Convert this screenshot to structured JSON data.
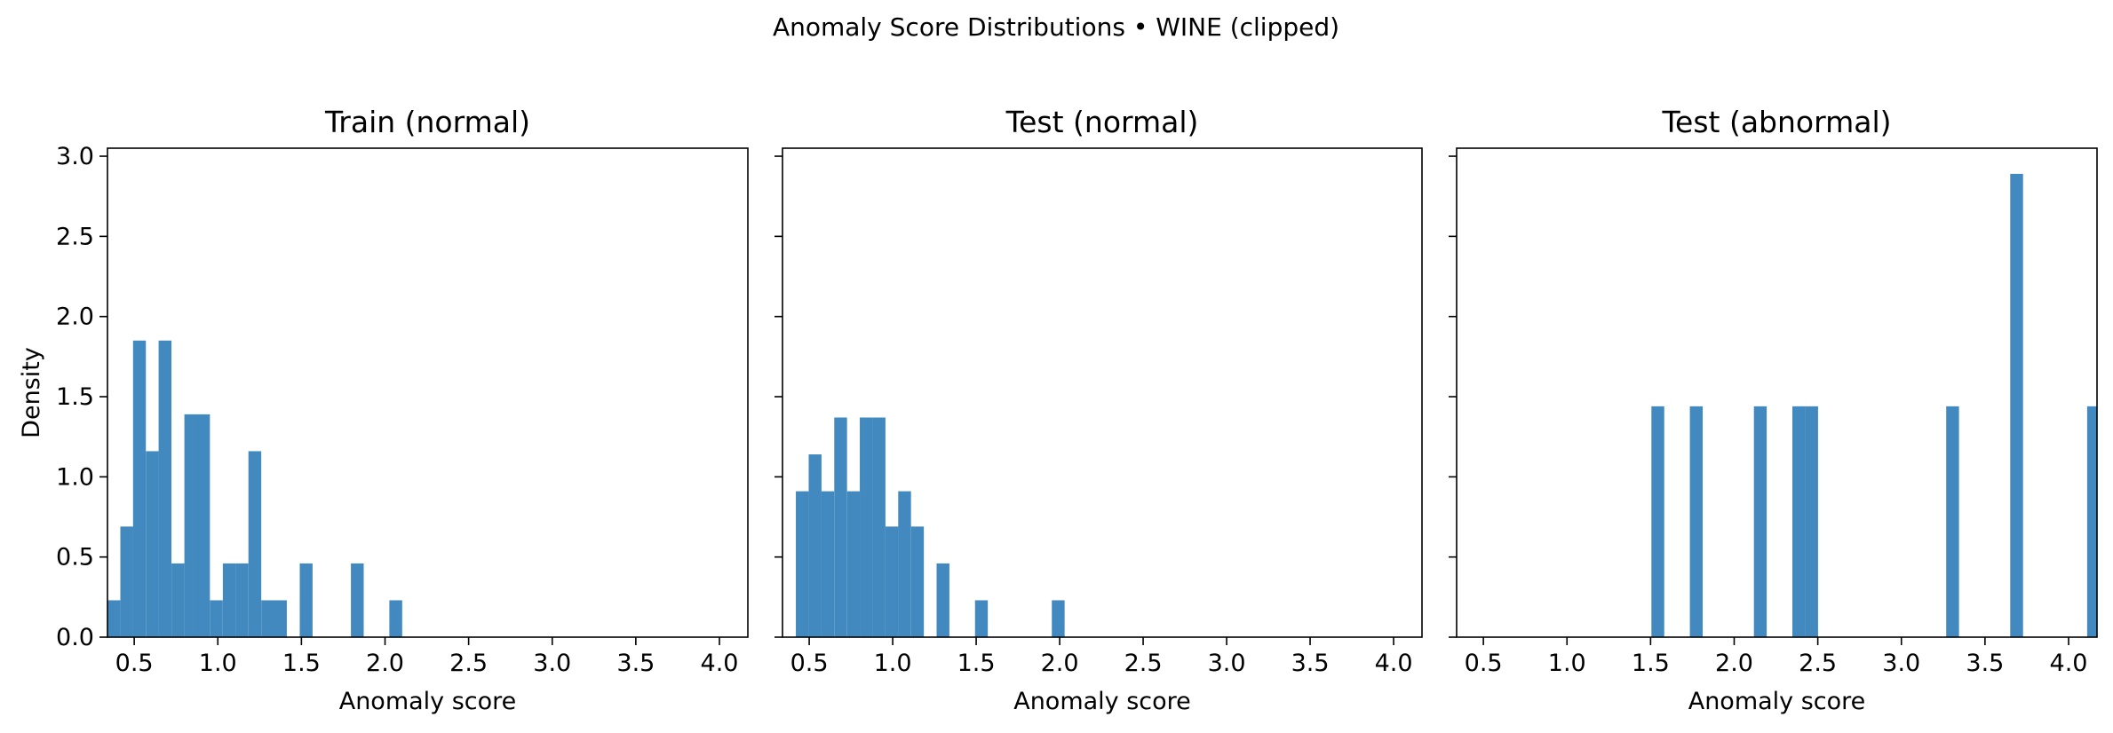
{
  "figure": {
    "title": "Anomaly Score Distributions • WINE (clipped)",
    "bar_color": "#4189be"
  },
  "chart_data": [
    {
      "type": "bar",
      "title": "Train (normal)",
      "xlabel": "Anomaly score",
      "ylabel": "Density",
      "xlim": [
        0.34,
        4.17
      ],
      "ylim": [
        0,
        3.05
      ],
      "xticks": [
        0.5,
        1.0,
        1.5,
        2.0,
        2.5,
        3.0,
        3.5,
        4.0
      ],
      "yticks": [
        0.0,
        0.5,
        1.0,
        1.5,
        2.0,
        2.5,
        3.0
      ],
      "xtick_labels": [
        "0.5",
        "1.0",
        "1.5",
        "2.0",
        "2.5",
        "3.0",
        "3.5",
        "4.0"
      ],
      "ytick_labels": [
        "0.0",
        "0.5",
        "1.0",
        "1.5",
        "2.0",
        "2.5",
        "3.0"
      ],
      "bin_width": 0.0766,
      "bin_starts": [
        0.34,
        0.417,
        0.493,
        0.57,
        0.646,
        0.723,
        0.8,
        0.876,
        0.953,
        1.03,
        1.106,
        1.183,
        1.26,
        1.336,
        1.49,
        1.796,
        2.026
      ],
      "values": [
        0.23,
        0.69,
        1.85,
        1.16,
        1.85,
        0.46,
        1.39,
        1.39,
        0.23,
        0.46,
        0.46,
        1.16,
        0.23,
        0.23,
        0.46,
        0.46,
        0.23
      ]
    },
    {
      "type": "bar",
      "title": "Test (normal)",
      "xlabel": "Anomaly score",
      "xlim": [
        0.34,
        4.17
      ],
      "ylim": [
        0,
        3.05
      ],
      "xticks": [
        0.5,
        1.0,
        1.5,
        2.0,
        2.5,
        3.0,
        3.5,
        4.0
      ],
      "yticks": [
        0.0,
        0.5,
        1.0,
        1.5,
        2.0,
        2.5,
        3.0
      ],
      "xtick_labels": [
        "0.5",
        "1.0",
        "1.5",
        "2.0",
        "2.5",
        "3.0",
        "3.5",
        "4.0"
      ],
      "ytick_labels": [
        "",
        "",
        "",
        "",
        "",
        "",
        ""
      ],
      "bin_width": 0.0766,
      "bin_starts": [
        0.42,
        0.497,
        0.573,
        0.65,
        0.727,
        0.803,
        0.88,
        0.957,
        1.033,
        1.11,
        1.263,
        1.493,
        1.953
      ],
      "values": [
        0.91,
        1.14,
        0.91,
        1.37,
        0.91,
        1.37,
        1.37,
        0.69,
        0.91,
        0.69,
        0.46,
        0.23,
        0.23
      ]
    },
    {
      "type": "bar",
      "title": "Test (abnormal)",
      "xlabel": "Anomaly score",
      "xlim": [
        0.34,
        4.17
      ],
      "ylim": [
        0,
        3.05
      ],
      "xticks": [
        0.5,
        1.0,
        1.5,
        2.0,
        2.5,
        3.0,
        3.5,
        4.0
      ],
      "yticks": [
        0.0,
        0.5,
        1.0,
        1.5,
        2.0,
        2.5,
        3.0
      ],
      "xtick_labels": [
        "0.5",
        "1.0",
        "1.5",
        "2.0",
        "2.5",
        "3.0",
        "3.5",
        "4.0"
      ],
      "ytick_labels": [
        "",
        "",
        "",
        "",
        "",
        "",
        ""
      ],
      "bin_width": 0.0766,
      "bin_starts": [
        1.505,
        1.735,
        2.118,
        2.348,
        2.425,
        3.268,
        3.651,
        4.111
      ],
      "values": [
        1.44,
        1.44,
        1.44,
        1.44,
        1.44,
        1.44,
        2.89,
        1.44
      ]
    }
  ]
}
